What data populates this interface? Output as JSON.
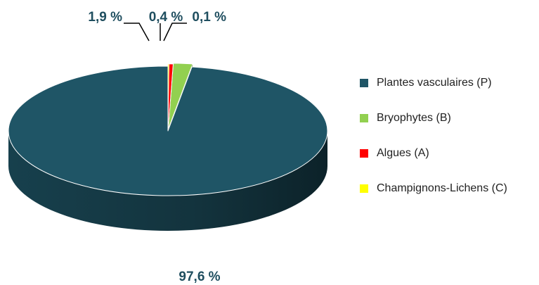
{
  "chart_data": {
    "type": "pie",
    "style": "3d",
    "categories": [
      "Plantes vasculaires (P)",
      "Bryophytes (B)",
      "Algues (A)",
      "Champignons-Lichens (C)"
    ],
    "values": [
      97.6,
      1.9,
      0.4,
      0.1
    ],
    "value_labels": [
      "97,6 %",
      "1,9 %",
      "0,4 %",
      "0,1 %"
    ],
    "colors": [
      "#1f5566",
      "#92d050",
      "#ff0000",
      "#ffff00"
    ],
    "label_color": "#1f4e5f",
    "exploded": [
      "Bryophytes (B)",
      "Algues (A)",
      "Champignons-Lichens (C)"
    ],
    "legend_position": "right",
    "title": "",
    "grid": false
  }
}
